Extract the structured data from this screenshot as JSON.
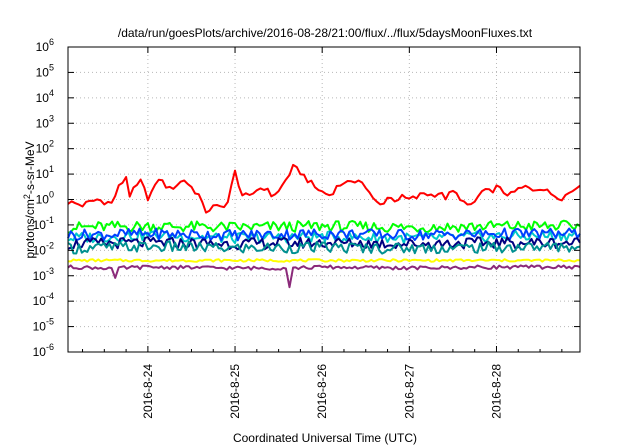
{
  "chart_data": {
    "type": "line",
    "title": "/data/run/goesPlots/archive/2016-08-28/21:00/flux/../flux/5daysMoonFluxes.txt",
    "xlabel": "Coordinated Universal Time (UTC)",
    "ylabel": "protons/cm²-s-sr-MeV",
    "yscale": "log",
    "ylim": [
      1e-06,
      1000000.0
    ],
    "xlim": [
      "2016-08-23 02:00",
      "2016-08-28 23:00"
    ],
    "grid": true,
    "y_ticks": [
      {
        "value": 1e-06,
        "base": "10",
        "exp": "-6"
      },
      {
        "value": 1e-05,
        "base": "10",
        "exp": "-5"
      },
      {
        "value": 0.0001,
        "base": "10",
        "exp": "-4"
      },
      {
        "value": 0.001,
        "base": "10",
        "exp": "-3"
      },
      {
        "value": 0.01,
        "base": "10",
        "exp": "-2"
      },
      {
        "value": 0.1,
        "base": "10",
        "exp": "-1"
      },
      {
        "value": 1,
        "base": "10",
        "exp": "0"
      },
      {
        "value": 10,
        "base": "10",
        "exp": "1"
      },
      {
        "value": 100,
        "base": "10",
        "exp": "2"
      },
      {
        "value": 1000,
        "base": "10",
        "exp": "3"
      },
      {
        "value": 10000,
        "base": "10",
        "exp": "4"
      },
      {
        "value": 100000,
        "base": "10",
        "exp": "5"
      },
      {
        "value": 1000000,
        "base": "10",
        "exp": "6"
      }
    ],
    "x_ticks": [
      "2016-8-24",
      "2016-8-25",
      "2016-8-26",
      "2016-8-27",
      "2016-8-28"
    ],
    "series": [
      {
        "color": "#ff0000",
        "x": [
          "08-23 02:00",
          "08-23 06:00",
          "08-23 10:00",
          "08-23 14:00",
          "08-23 16:00",
          "08-23 18:00",
          "08-23 19:00",
          "08-23 22:00",
          "08-24 00:00",
          "08-24 02:00",
          "08-24 03:00",
          "08-24 06:00",
          "08-24 10:00",
          "08-24 14:00",
          "08-24 15:00",
          "08-24 16:00",
          "08-24 18:00",
          "08-24 20:00",
          "08-24 22:00",
          "08-25 00:00",
          "08-25 02:00",
          "08-25 04:00",
          "08-25 06:00",
          "08-25 08:00",
          "08-25 10:00",
          "08-25 12:00",
          "08-25 14:00",
          "08-25 16:00",
          "08-25 18:00",
          "08-25 20:00",
          "08-25 22:00",
          "08-26 00:00",
          "08-26 02:00",
          "08-26 04:00",
          "08-26 06:00",
          "08-26 08:00",
          "08-26 10:00",
          "08-26 12:00",
          "08-26 14:00",
          "08-26 16:00",
          "08-26 18:00",
          "08-26 20:00",
          "08-26 22:00",
          "08-27 00:00",
          "08-27 02:00",
          "08-27 04:00",
          "08-27 06:00",
          "08-27 08:00",
          "08-27 10:00",
          "08-27 12:00",
          "08-27 14:00",
          "08-27 16:00",
          "08-27 18:00",
          "08-27 20:00",
          "08-27 22:00",
          "08-28 00:00",
          "08-28 02:00",
          "08-28 04:00",
          "08-28 06:00",
          "08-28 08:00",
          "08-28 10:00",
          "08-28 12:00",
          "08-28 14:00",
          "08-28 16:00",
          "08-28 18:00",
          "08-28 20:00",
          "08-28 22:00",
          "08-28 23:00"
        ],
        "y": [
          0.8,
          0.6,
          1.0,
          0.7,
          3.0,
          8.0,
          1.5,
          5.0,
          1.2,
          3.0,
          7.0,
          2.5,
          6.0,
          1.5,
          0.6,
          0.35,
          0.5,
          0.5,
          0.8,
          12.0,
          1.5,
          1.2,
          2.5,
          3.0,
          1.5,
          2.0,
          6.0,
          18.0,
          12.0,
          6.0,
          3.0,
          2.0,
          1.5,
          3.0,
          5.0,
          4.0,
          7.0,
          3.0,
          1.0,
          0.6,
          1.2,
          1.0,
          1.2,
          1.0,
          1.2,
          1.8,
          1.5,
          1.8,
          1.2,
          2.0,
          1.2,
          0.5,
          0.8,
          2.0,
          2.0,
          3.0,
          2.0,
          1.5,
          2.5,
          3.0,
          2.5,
          3.0,
          2.0,
          1.5,
          1.2,
          1.8,
          3.0,
          3.5
        ]
      },
      {
        "color": "#00ff00",
        "x": [
          "08-23 02:00",
          "08-24 00:00",
          "08-25 00:00",
          "08-26 00:00",
          "08-27 00:00",
          "08-28 00:00",
          "08-28 23:00"
        ],
        "y": [
          0.08,
          0.09,
          0.08,
          0.09,
          0.08,
          0.09,
          0.09
        ]
      },
      {
        "color": "#00c8c8",
        "x": [
          "08-23 02:00",
          "08-24 00:00",
          "08-25 00:00",
          "08-26 00:00",
          "08-27 00:00",
          "08-28 00:00",
          "08-28 23:00"
        ],
        "y": [
          0.03,
          0.04,
          0.03,
          0.035,
          0.03,
          0.035,
          0.04
        ]
      },
      {
        "color": "#0040ff",
        "x": [
          "08-23 02:00",
          "08-24 00:00",
          "08-25 00:00",
          "08-26 00:00",
          "08-27 00:00",
          "08-28 00:00",
          "08-28 23:00"
        ],
        "y": [
          0.04,
          0.045,
          0.04,
          0.045,
          0.04,
          0.045,
          0.045
        ]
      },
      {
        "color": "#000080",
        "x": [
          "08-23 02:00",
          "08-24 00:00",
          "08-25 00:00",
          "08-26 00:00",
          "08-27 00:00",
          "08-28 00:00",
          "08-28 23:00"
        ],
        "y": [
          0.018,
          0.02,
          0.018,
          0.02,
          0.018,
          0.02,
          0.02
        ]
      },
      {
        "color": "#009090",
        "x": [
          "08-23 02:00",
          "08-24 00:00",
          "08-25 00:00",
          "08-26 00:00",
          "08-27 00:00",
          "08-28 00:00",
          "08-28 23:00"
        ],
        "y": [
          0.012,
          0.014,
          0.012,
          0.013,
          0.012,
          0.013,
          0.014
        ]
      },
      {
        "color": "#ffff00",
        "x": [
          "08-23 02:00",
          "08-24 00:00",
          "08-25 00:00",
          "08-26 00:00",
          "08-27 00:00",
          "08-28 00:00",
          "08-28 23:00"
        ],
        "y": [
          0.004,
          0.004,
          0.004,
          0.004,
          0.004,
          0.004,
          0.004
        ]
      },
      {
        "color": "#8b2a7a",
        "x": [
          "08-23 02:00",
          "08-23 14:00",
          "08-23 15:00",
          "08-23 16:00",
          "08-24 00:00",
          "08-25 00:00",
          "08-25 14:00",
          "08-25 15:00",
          "08-25 16:00",
          "08-26 00:00",
          "08-27 00:00",
          "08-28 00:00",
          "08-28 23:00"
        ],
        "y": [
          0.0022,
          0.002,
          0.0007,
          0.002,
          0.0022,
          0.002,
          0.002,
          0.0004,
          0.002,
          0.0022,
          0.002,
          0.0022,
          0.0022
        ]
      }
    ]
  }
}
